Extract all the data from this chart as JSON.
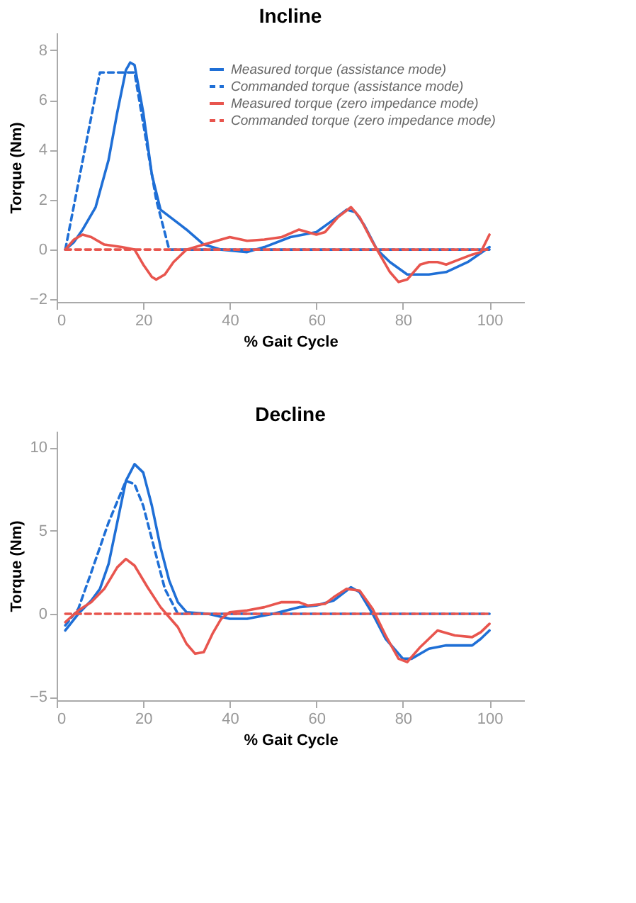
{
  "chart_data": [
    {
      "type": "line",
      "title": "Incline",
      "xlabel": "% Gait Cycle",
      "ylabel": "Torque (Nm)",
      "xlim": [
        0,
        108
      ],
      "ylim": [
        -2.1,
        8.7
      ],
      "xticks": [
        0,
        20,
        40,
        60,
        80,
        100
      ],
      "yticks": [
        -2,
        0,
        2,
        4,
        6,
        8
      ],
      "grid": false,
      "legend": "top right",
      "series": [
        {
          "name": "Measured torque (assistance mode)",
          "color": "#1f6fd6",
          "line_style": "solid",
          "x": [
            2,
            4,
            6,
            9,
            12,
            14,
            16,
            17,
            18,
            20,
            22,
            24,
            27,
            30,
            34,
            38,
            44,
            48,
            54,
            60,
            64,
            67,
            69,
            71,
            74,
            77,
            81,
            86,
            90,
            95,
            100
          ],
          "values": [
            0,
            0.3,
            0.8,
            1.7,
            3.6,
            5.5,
            7.2,
            7.5,
            7.4,
            5.5,
            3,
            1.6,
            1.2,
            0.8,
            0.2,
            0,
            -0.1,
            0.1,
            0.5,
            0.7,
            1.2,
            1.6,
            1.5,
            1,
            0,
            -0.5,
            -1.0,
            -1.0,
            -0.9,
            -0.5,
            0.1
          ]
        },
        {
          "name": "Commanded torque (assistance mode)",
          "color": "#1f6fd6",
          "line_style": "dashed",
          "x": [
            2,
            10,
            18,
            23,
            26,
            100
          ],
          "values": [
            0,
            7.1,
            7.1,
            2,
            0,
            0
          ]
        },
        {
          "name": "Measured torque (zero impedance mode)",
          "color": "#e8554e",
          "line_style": "solid",
          "x": [
            2,
            4,
            6,
            8,
            11,
            15,
            18,
            20,
            22,
            23,
            25,
            27,
            30,
            34,
            38,
            40,
            44,
            48,
            52,
            56,
            60,
            62,
            65,
            68,
            70,
            73,
            75,
            77,
            79,
            81,
            84,
            86,
            88,
            90,
            93,
            96,
            98,
            100
          ],
          "values": [
            0,
            0.4,
            0.6,
            0.5,
            0.2,
            0.1,
            0,
            -0.6,
            -1.1,
            -1.2,
            -1.0,
            -0.5,
            0,
            0.2,
            0.4,
            0.5,
            0.35,
            0.4,
            0.5,
            0.8,
            0.6,
            0.7,
            1.3,
            1.7,
            1.3,
            0.3,
            -0.3,
            -0.9,
            -1.3,
            -1.2,
            -0.6,
            -0.5,
            -0.5,
            -0.6,
            -0.4,
            -0.2,
            -0.1,
            0.6
          ]
        },
        {
          "name": "Commanded torque (zero impedance mode)",
          "color": "#e8554e",
          "line_style": "dashed",
          "x": [
            2,
            100
          ],
          "values": [
            0,
            0
          ]
        }
      ]
    },
    {
      "type": "line",
      "title": "Decline",
      "xlabel": "% Gait Cycle",
      "ylabel": "Torque (Nm)",
      "xlim": [
        0,
        108
      ],
      "ylim": [
        -5.2,
        11
      ],
      "xticks": [
        0,
        20,
        40,
        60,
        80,
        100
      ],
      "yticks": [
        -5,
        0,
        5,
        10
      ],
      "grid": false,
      "series": [
        {
          "color": "#1f6fd6",
          "line_style": "solid",
          "x": [
            2,
            5,
            8,
            10,
            12,
            14,
            16,
            18,
            20,
            22,
            24,
            26,
            28,
            30,
            35,
            40,
            44,
            50,
            56,
            60,
            64,
            68,
            70,
            73,
            76,
            80,
            82,
            86,
            90,
            96,
            98,
            100
          ],
          "values": [
            -1,
            0,
            0.8,
            1.5,
            3,
            5.5,
            8,
            9,
            8.5,
            6.5,
            4,
            2,
            0.7,
            0.1,
            0,
            -0.3,
            -0.3,
            0,
            0.4,
            0.5,
            0.8,
            1.6,
            1.3,
            0,
            -1.5,
            -2.7,
            -2.7,
            -2.1,
            -1.9,
            -1.9,
            -1.5,
            -1.0
          ]
        },
        {
          "color": "#1f6fd6",
          "line_style": "dashed",
          "x": [
            2,
            5,
            8,
            12,
            16,
            18,
            20,
            23,
            25,
            28,
            100
          ],
          "values": [
            -0.7,
            0.3,
            2.5,
            5.5,
            8,
            7.8,
            6.5,
            3.5,
            1.5,
            0,
            0
          ]
        },
        {
          "color": "#e8554e",
          "line_style": "solid",
          "x": [
            2,
            5,
            8,
            11,
            14,
            16,
            18,
            21,
            24,
            26,
            28,
            30,
            32,
            34,
            36,
            38,
            40,
            44,
            48,
            52,
            56,
            58,
            62,
            64,
            67,
            70,
            73,
            76,
            79,
            81,
            84,
            88,
            92,
            96,
            98,
            100
          ],
          "values": [
            -0.5,
            0.2,
            0.7,
            1.5,
            2.8,
            3.3,
            2.9,
            1.6,
            0.4,
            -0.2,
            -0.8,
            -1.8,
            -2.4,
            -2.3,
            -1.2,
            -0.3,
            0.1,
            0.2,
            0.4,
            0.7,
            0.7,
            0.5,
            0.6,
            1.0,
            1.5,
            1.4,
            0.3,
            -1.3,
            -2.7,
            -2.9,
            -2.0,
            -1.0,
            -1.3,
            -1.4,
            -1.1,
            -0.6
          ]
        },
        {
          "color": "#e8554e",
          "line_style": "dashed",
          "x": [
            2,
            100
          ],
          "values": [
            0,
            0
          ]
        }
      ]
    }
  ]
}
